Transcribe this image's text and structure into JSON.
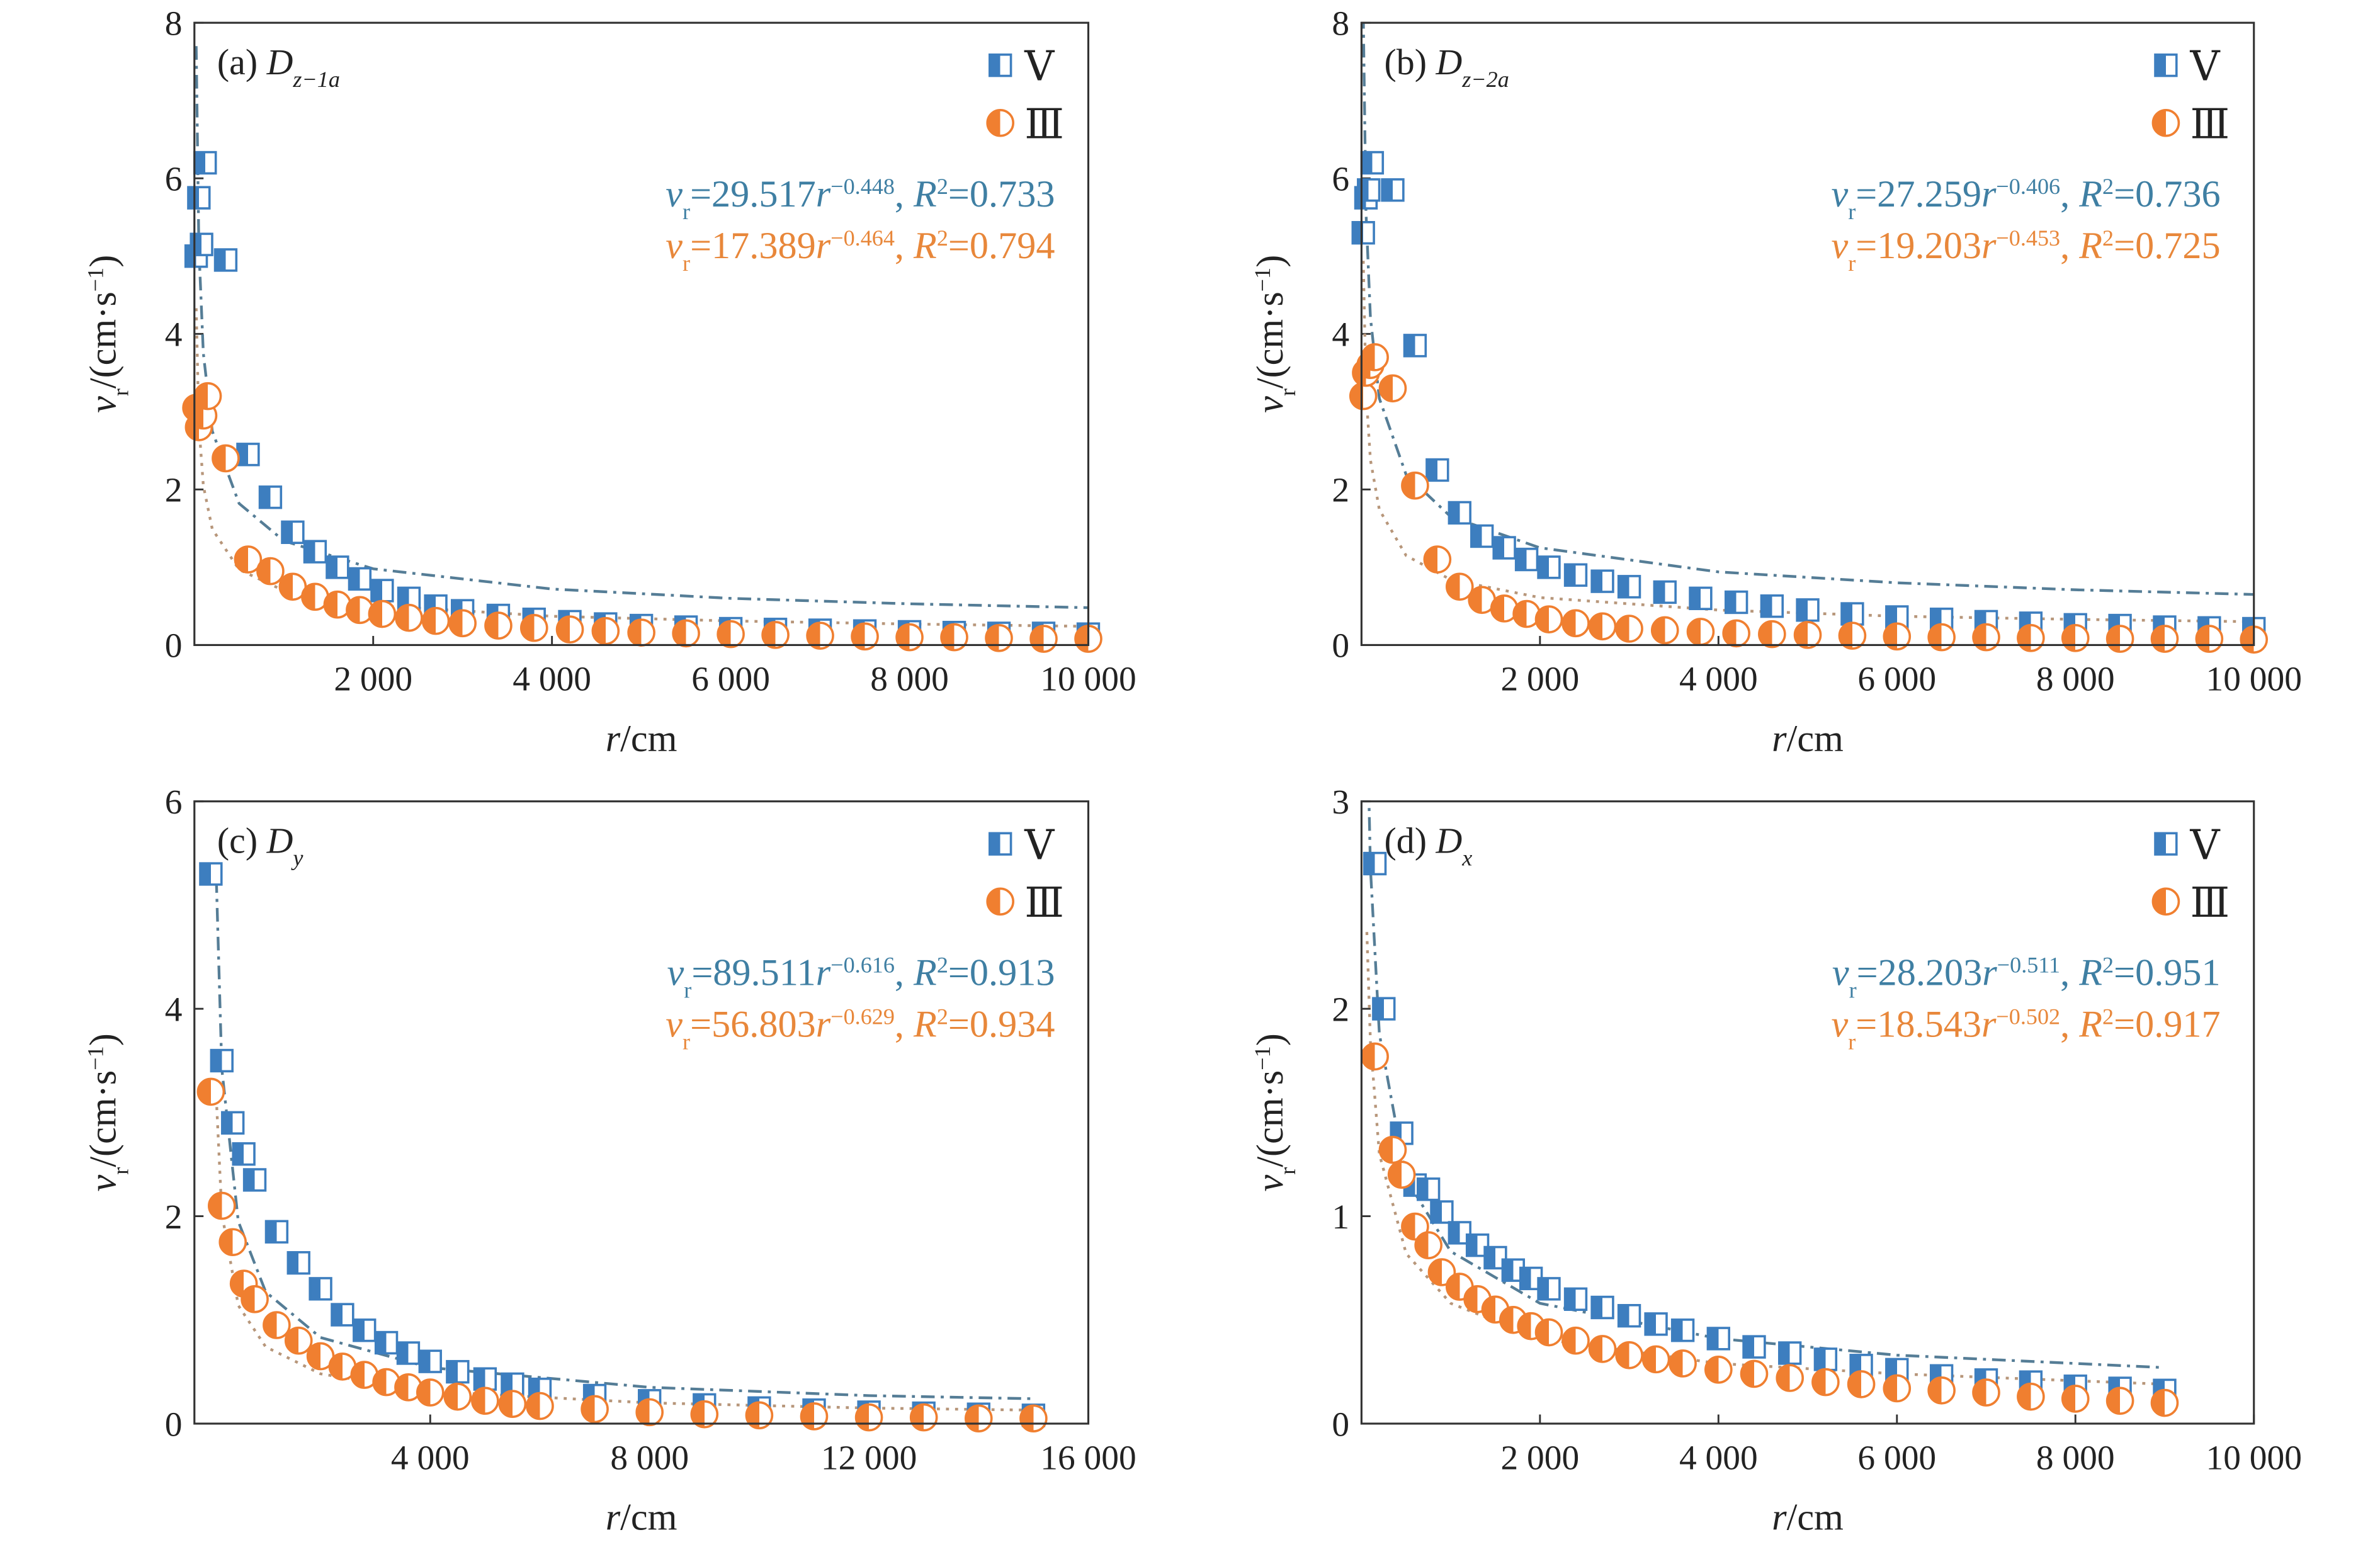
{
  "chart_data": [
    {
      "type": "scatter",
      "legend": "upper right",
      "panel_label": {
        "panel": "(a)",
        "symbol": "D",
        "subscript": "z−1a"
      },
      "x_label": {
        "r": "r",
        "unit": "/cm"
      },
      "y_label": {
        "v": "v",
        "sub": "r",
        "unit": "/(cm·s",
        "sup": "−1",
        "close": ")"
      },
      "xlim": [
        0,
        10000
      ],
      "ylim": [
        0,
        8
      ],
      "xticks": [
        {
          "value": 2000,
          "label": "2 000"
        },
        {
          "value": 4000,
          "label": "4 000"
        },
        {
          "value": 6000,
          "label": "6 000"
        },
        {
          "value": 8000,
          "label": "8 000"
        },
        {
          "value": 10000,
          "label": "10 000"
        }
      ],
      "yticks": [
        0,
        2,
        4,
        6,
        8
      ],
      "series": [
        {
          "name": "Ⅴ",
          "color": "#3d7ebf",
          "marker": "square",
          "x": [
            20,
            50,
            80,
            120,
            350,
            600,
            850,
            1100,
            1350,
            1600,
            1850,
            2100,
            2400,
            2700,
            3000,
            3400,
            3800,
            4200,
            4600,
            5000,
            5500,
            6000,
            6500,
            7000,
            7500,
            8000,
            8500,
            9000,
            9500,
            10000
          ],
          "values": [
            5.0,
            5.75,
            5.15,
            6.2,
            4.95,
            2.45,
            1.9,
            1.45,
            1.2,
            1.0,
            0.85,
            0.7,
            0.6,
            0.5,
            0.44,
            0.38,
            0.33,
            0.3,
            0.27,
            0.25,
            0.23,
            0.21,
            0.2,
            0.19,
            0.18,
            0.17,
            0.16,
            0.15,
            0.15,
            0.14
          ]
        },
        {
          "name": "Ⅲ",
          "color": "#f07f30",
          "marker": "circle",
          "x": [
            20,
            50,
            100,
            150,
            350,
            600,
            850,
            1100,
            1350,
            1600,
            1850,
            2100,
            2400,
            2700,
            3000,
            3400,
            3800,
            4200,
            4600,
            5000,
            5500,
            6000,
            6500,
            7000,
            7500,
            8000,
            8500,
            9000,
            9500,
            10000
          ],
          "values": [
            3.05,
            2.8,
            2.95,
            3.2,
            2.4,
            1.1,
            0.95,
            0.75,
            0.62,
            0.52,
            0.45,
            0.4,
            0.35,
            0.31,
            0.28,
            0.25,
            0.22,
            0.2,
            0.18,
            0.16,
            0.15,
            0.14,
            0.13,
            0.12,
            0.11,
            0.1,
            0.1,
            0.09,
            0.08,
            0.08
          ]
        }
      ],
      "fit_lines": [
        {
          "color": "#557d96",
          "dash": "9 4 2 4",
          "x": [
            20,
            50,
            100,
            200,
            500,
            1000,
            2000,
            4000,
            6000,
            8000,
            10000
          ],
          "values": [
            7.7,
            5.11,
            3.75,
            2.75,
            1.82,
            1.34,
            0.98,
            0.72,
            0.6,
            0.53,
            0.48
          ]
        },
        {
          "color": "#b7967a",
          "dash": "2 4",
          "x": [
            20,
            50,
            100,
            200,
            500,
            1000,
            2000,
            4000,
            6000,
            8000,
            10000
          ],
          "values": [
            4.33,
            2.83,
            2.05,
            1.49,
            0.97,
            0.7,
            0.51,
            0.37,
            0.31,
            0.27,
            0.24
          ]
        }
      ],
      "equations": [
        {
          "color": "#3f7fa3",
          "v": "v",
          "v_sub": "r",
          "coef": "=29.517",
          "r": "r",
          "exp": "−0.448",
          "sep": ", ",
          "R": "R",
          "R_sup": "2",
          "r2": "=0.733"
        },
        {
          "color": "#e8873a",
          "v": "v",
          "v_sub": "r",
          "coef": "=17.389",
          "r": "r",
          "exp": "−0.464",
          "sep": ", ",
          "R": "R",
          "R_sup": "2",
          "r2": "=0.794"
        }
      ]
    },
    {
      "type": "scatter",
      "legend": "upper right",
      "panel_label": {
        "panel": "(b)",
        "symbol": "D",
        "subscript": "z−2a"
      },
      "x_label": {
        "r": "r",
        "unit": "/cm"
      },
      "y_label": {
        "v": "v",
        "sub": "r",
        "unit": "/(cm·s",
        "sup": "−1",
        "close": ")"
      },
      "xlim": [
        0,
        10000
      ],
      "ylim": [
        0,
        8
      ],
      "xticks": [
        {
          "value": 2000,
          "label": "2 000"
        },
        {
          "value": 4000,
          "label": "4 000"
        },
        {
          "value": 6000,
          "label": "6 000"
        },
        {
          "value": 8000,
          "label": "8 000"
        },
        {
          "value": 10000,
          "label": "10 000"
        }
      ],
      "yticks": [
        0,
        2,
        4,
        6,
        8
      ],
      "series": [
        {
          "name": "Ⅴ",
          "color": "#3d7ebf",
          "marker": "square",
          "x": [
            20,
            50,
            80,
            120,
            350,
            600,
            850,
            1100,
            1350,
            1600,
            1850,
            2100,
            2400,
            2700,
            3000,
            3400,
            3800,
            4200,
            4600,
            5000,
            5500,
            6000,
            6500,
            7000,
            7500,
            8000,
            8500,
            9000,
            9500,
            10000
          ],
          "values": [
            5.3,
            5.75,
            5.85,
            6.2,
            5.85,
            3.85,
            2.25,
            1.7,
            1.4,
            1.25,
            1.1,
            1.0,
            0.9,
            0.82,
            0.75,
            0.68,
            0.6,
            0.55,
            0.5,
            0.45,
            0.4,
            0.36,
            0.33,
            0.3,
            0.28,
            0.26,
            0.25,
            0.23,
            0.22,
            0.21
          ]
        },
        {
          "name": "Ⅲ",
          "color": "#f07f30",
          "marker": "circle",
          "x": [
            20,
            50,
            100,
            150,
            350,
            600,
            850,
            1100,
            1350,
            1600,
            1850,
            2100,
            2400,
            2700,
            3000,
            3400,
            3800,
            4200,
            4600,
            5000,
            5500,
            6000,
            6500,
            7000,
            7500,
            8000,
            8500,
            9000,
            9500,
            10000
          ],
          "values": [
            3.2,
            3.5,
            3.6,
            3.7,
            3.3,
            2.05,
            1.1,
            0.75,
            0.58,
            0.47,
            0.4,
            0.33,
            0.28,
            0.24,
            0.21,
            0.19,
            0.17,
            0.15,
            0.14,
            0.13,
            0.12,
            0.11,
            0.1,
            0.1,
            0.09,
            0.09,
            0.08,
            0.08,
            0.08,
            0.07
          ]
        }
      ],
      "fit_lines": [
        {
          "color": "#557d96",
          "dash": "9 4 2 4",
          "x": [
            20,
            50,
            100,
            200,
            500,
            1000,
            2000,
            4000,
            6000,
            8000,
            10000
          ],
          "values": [
            8.1,
            5.57,
            4.21,
            3.17,
            2.19,
            1.65,
            1.25,
            0.94,
            0.8,
            0.71,
            0.65
          ]
        },
        {
          "color": "#b7967a",
          "dash": "2 4",
          "x": [
            20,
            50,
            100,
            200,
            500,
            1000,
            2000,
            4000,
            6000,
            8000,
            10000
          ],
          "values": [
            4.94,
            3.27,
            2.38,
            1.74,
            1.15,
            0.84,
            0.61,
            0.45,
            0.37,
            0.33,
            0.3
          ]
        }
      ],
      "equations": [
        {
          "color": "#3f7fa3",
          "v": "v",
          "v_sub": "r",
          "coef": "=27.259",
          "r": "r",
          "exp": "−0.406",
          "sep": ", ",
          "R": "R",
          "R_sup": "2",
          "r2": "=0.736"
        },
        {
          "color": "#e8873a",
          "v": "v",
          "v_sub": "r",
          "coef": "=19.203",
          "r": "r",
          "exp": "−0.453",
          "sep": ", ",
          "R": "R",
          "R_sup": "2",
          "r2": "=0.725"
        }
      ]
    },
    {
      "type": "scatter",
      "legend": "upper right",
      "panel_label": {
        "panel": "(c)",
        "symbol": "D",
        "subscript": "y"
      },
      "x_label": {
        "r": "r",
        "unit": "/cm"
      },
      "y_label": {
        "v": "v",
        "sub": "r",
        "unit": "/(cm·s",
        "sup": "−1",
        "close": ")"
      },
      "xlim": [
        -300,
        16000
      ],
      "ylim": [
        0,
        6
      ],
      "xticks": [
        {
          "value": 4000,
          "label": "4 000"
        },
        {
          "value": 8000,
          "label": "8 000"
        },
        {
          "value": 12000,
          "label": "12 000"
        },
        {
          "value": 16000,
          "label": "16 000"
        }
      ],
      "yticks": [
        0,
        2,
        4,
        6
      ],
      "series": [
        {
          "name": "Ⅴ",
          "color": "#3d7ebf",
          "marker": "square",
          "x": [
            0,
            200,
            400,
            600,
            800,
            1200,
            1600,
            2000,
            2400,
            2800,
            3200,
            3600,
            4000,
            4500,
            5000,
            5500,
            6000,
            7000,
            8000,
            9000,
            10000,
            11000,
            12000,
            13000,
            14000,
            15000
          ],
          "values": [
            5.3,
            3.5,
            2.9,
            2.6,
            2.35,
            1.85,
            1.55,
            1.3,
            1.05,
            0.9,
            0.78,
            0.68,
            0.6,
            0.5,
            0.43,
            0.38,
            0.33,
            0.27,
            0.22,
            0.18,
            0.15,
            0.13,
            0.11,
            0.1,
            0.09,
            0.08
          ]
        },
        {
          "name": "Ⅲ",
          "color": "#f07f30",
          "marker": "circle",
          "x": [
            0,
            200,
            400,
            600,
            800,
            1200,
            1600,
            2000,
            2400,
            2800,
            3200,
            3600,
            4000,
            4500,
            5000,
            5500,
            6000,
            7000,
            8000,
            9000,
            10000,
            11000,
            12000,
            13000,
            14000,
            15000
          ],
          "values": [
            3.2,
            2.1,
            1.75,
            1.35,
            1.2,
            0.95,
            0.8,
            0.65,
            0.55,
            0.47,
            0.4,
            0.35,
            0.3,
            0.26,
            0.22,
            0.19,
            0.17,
            0.14,
            0.11,
            0.09,
            0.08,
            0.07,
            0.06,
            0.06,
            0.05,
            0.05
          ]
        }
      ],
      "fit_lines": [
        {
          "color": "#557d96",
          "dash": "9 4 2 4",
          "x": [
            100,
            200,
            500,
            1000,
            2000,
            4000,
            8000,
            12000,
            15000
          ],
          "values": [
            5.25,
            3.42,
            1.95,
            1.27,
            0.83,
            0.54,
            0.35,
            0.27,
            0.24
          ]
        },
        {
          "color": "#b7967a",
          "dash": "2 4",
          "x": [
            100,
            200,
            500,
            1000,
            2000,
            4000,
            8000,
            12000,
            15000
          ],
          "values": [
            3.14,
            2.03,
            1.14,
            0.74,
            0.48,
            0.31,
            0.2,
            0.15,
            0.13
          ]
        }
      ],
      "equations": [
        {
          "color": "#3f7fa3",
          "v": "v",
          "v_sub": "r",
          "coef": "=89.511",
          "r": "r",
          "exp": "−0.616",
          "sep": ", ",
          "R": "R",
          "R_sup": "2",
          "r2": "=0.913"
        },
        {
          "color": "#e8873a",
          "v": "v",
          "v_sub": "r",
          "coef": "=56.803",
          "r": "r",
          "exp": "−0.629",
          "sep": ", ",
          "R": "R",
          "R_sup": "2",
          "r2": "=0.934"
        }
      ]
    },
    {
      "type": "scatter",
      "legend": "upper right",
      "panel_label": {
        "panel": "(d)",
        "symbol": "D",
        "subscript": "x"
      },
      "x_label": {
        "r": "r",
        "unit": "/cm"
      },
      "y_label": {
        "v": "v",
        "sub": "r",
        "unit": "/(cm·s",
        "sup": "−1",
        "close": ")"
      },
      "xlim": [
        0,
        10000
      ],
      "ylim": [
        0,
        3
      ],
      "xticks": [
        {
          "value": 2000,
          "label": "2 000"
        },
        {
          "value": 4000,
          "label": "4 000"
        },
        {
          "value": 6000,
          "label": "6 000"
        },
        {
          "value": 8000,
          "label": "8 000"
        },
        {
          "value": 10000,
          "label": "10 000"
        }
      ],
      "yticks": [
        0,
        1,
        2,
        3
      ],
      "series": [
        {
          "name": "Ⅴ",
          "color": "#3d7ebf",
          "marker": "square",
          "x": [
            150,
            250,
            450,
            600,
            750,
            900,
            1100,
            1300,
            1500,
            1700,
            1900,
            2100,
            2400,
            2700,
            3000,
            3300,
            3600,
            4000,
            4400,
            4800,
            5200,
            5600,
            6000,
            6500,
            7000,
            7500,
            8000,
            8500,
            9000
          ],
          "values": [
            2.7,
            2.0,
            1.4,
            1.15,
            1.13,
            1.02,
            0.92,
            0.86,
            0.8,
            0.74,
            0.7,
            0.65,
            0.6,
            0.56,
            0.52,
            0.48,
            0.45,
            0.41,
            0.37,
            0.34,
            0.31,
            0.28,
            0.26,
            0.23,
            0.21,
            0.2,
            0.18,
            0.17,
            0.16
          ]
        },
        {
          "name": "Ⅲ",
          "color": "#f07f30",
          "marker": "circle",
          "x": [
            150,
            350,
            450,
            600,
            750,
            900,
            1100,
            1300,
            1500,
            1700,
            1900,
            2100,
            2400,
            2700,
            3000,
            3300,
            3600,
            4000,
            4400,
            4800,
            5200,
            5600,
            6000,
            6500,
            7000,
            7500,
            8000,
            8500,
            9000
          ],
          "values": [
            1.77,
            1.32,
            1.2,
            0.95,
            0.86,
            0.73,
            0.66,
            0.6,
            0.55,
            0.5,
            0.47,
            0.44,
            0.4,
            0.36,
            0.33,
            0.31,
            0.29,
            0.26,
            0.24,
            0.22,
            0.2,
            0.19,
            0.17,
            0.16,
            0.15,
            0.13,
            0.12,
            0.11,
            0.1
          ]
        }
      ],
      "fit_lines": [
        {
          "color": "#557d96",
          "dash": "9 4 2 4",
          "x": [
            60,
            100,
            200,
            500,
            1000,
            2000,
            4000,
            6000,
            9000
          ],
          "values": [
            3.48,
            2.68,
            1.88,
            1.18,
            0.83,
            0.58,
            0.41,
            0.33,
            0.27
          ]
        },
        {
          "color": "#b7967a",
          "dash": "2 4",
          "x": [
            60,
            100,
            200,
            500,
            1000,
            2000,
            4000,
            6000,
            9000
          ],
          "values": [
            2.37,
            1.84,
            1.3,
            0.82,
            0.58,
            0.41,
            0.29,
            0.24,
            0.19
          ]
        }
      ],
      "equations": [
        {
          "color": "#3f7fa3",
          "v": "v",
          "v_sub": "r",
          "coef": "=28.203",
          "r": "r",
          "exp": "−0.511",
          "sep": ", ",
          "R": "R",
          "R_sup": "2",
          "r2": "=0.951"
        },
        {
          "color": "#e8873a",
          "v": "v",
          "v_sub": "r",
          "coef": "=18.543",
          "r": "r",
          "exp": "−0.502",
          "sep": ", ",
          "R": "R",
          "R_sup": "2",
          "r2": "=0.917"
        }
      ]
    }
  ]
}
